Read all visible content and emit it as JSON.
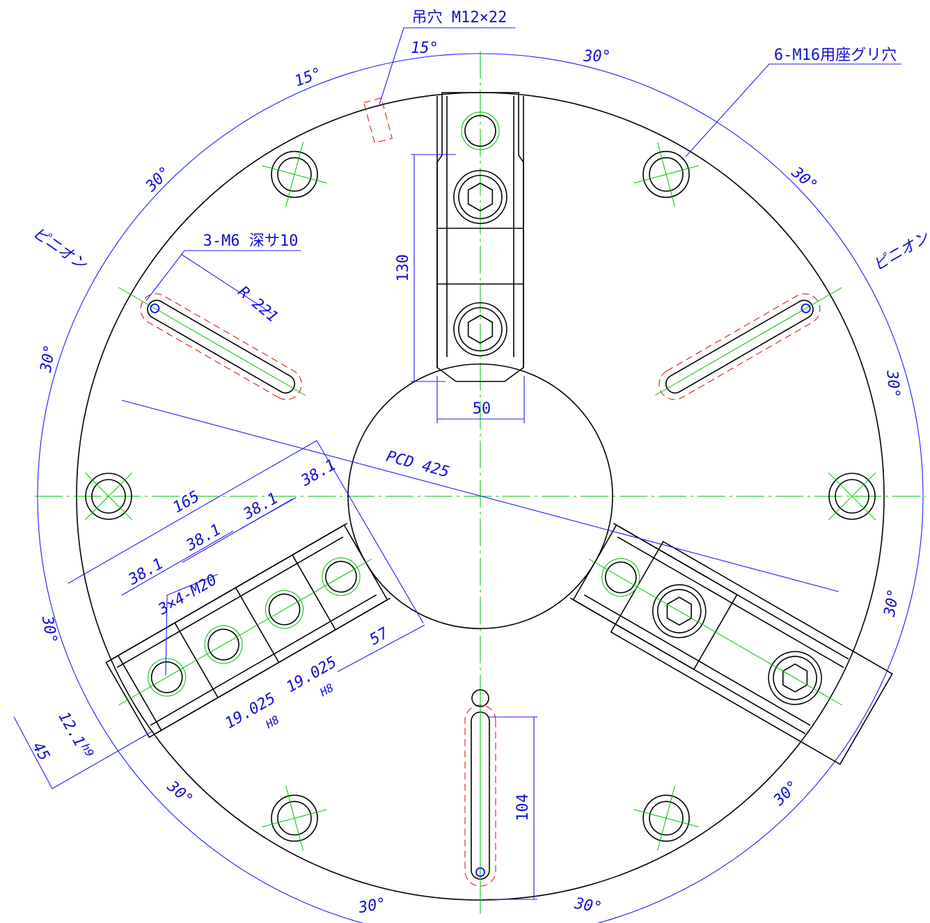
{
  "callouts": {
    "lifting_hole": "吊穴 M12×22",
    "counterbore": "6-M16用座グリ穴",
    "tapped_hole": "3-M6 深サ10",
    "pinion_left": "ピニオン",
    "pinion_right": "ピニオン",
    "jaw_bolts": "3×4-M20",
    "radius": "R 221",
    "pcd": "PCD 425"
  },
  "angles": [
    "15°",
    "15°",
    "30°",
    "30°",
    "30°",
    "30°",
    "30°",
    "30°",
    "30°",
    "30°",
    "30°",
    "30°",
    "30°"
  ],
  "dimensions": {
    "jaw_length": 130,
    "jaw_width": 50,
    "jaw_span": 165,
    "pitches": [
      38.1,
      38.1,
      38.1,
      38.1
    ],
    "offset": 57,
    "key_width_1": 19.025,
    "key_fit_1": "H8",
    "key_width_2": 19.025,
    "key_fit_2": "H8",
    "key_depth": 12.1,
    "key_fit_3": "h9",
    "jaw_height": 45,
    "slot_length": 104
  }
}
